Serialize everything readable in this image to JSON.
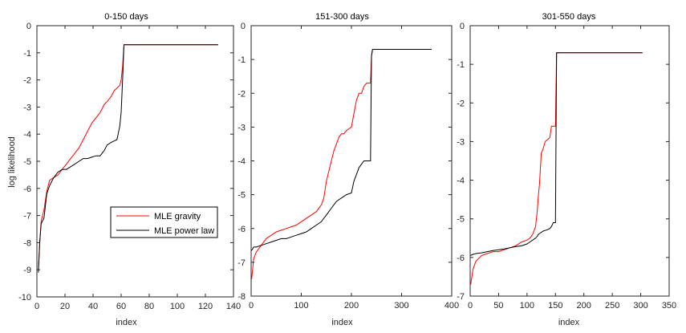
{
  "figure": {
    "ylabel": "log likelihood",
    "legend": {
      "entries": [
        {
          "label": "MLE gravity",
          "color": "#ff0000"
        },
        {
          "label": "MLE power law",
          "color": "#000000"
        }
      ],
      "placement": "lower-right of first panel"
    }
  },
  "chart_data": [
    {
      "type": "line",
      "title": "0-150 days",
      "xlabel": "index",
      "ylabel": "log likelihood",
      "xlim": [
        0,
        140
      ],
      "ylim": [
        -10,
        0
      ],
      "xticks": [
        0,
        20,
        40,
        60,
        80,
        100,
        120,
        140
      ],
      "yticks": [
        -10,
        -9,
        -8,
        -7,
        -6,
        -5,
        -4,
        -3,
        -2,
        -1,
        0
      ],
      "grid": false,
      "series": [
        {
          "name": "MLE gravity",
          "color": "#ff0000",
          "x": [
            1,
            2,
            3,
            5,
            7,
            9,
            12,
            15,
            18,
            21,
            24,
            27,
            30,
            33,
            36,
            39,
            42,
            45,
            48,
            50,
            53,
            55,
            57,
            59,
            60,
            61,
            62,
            63,
            129
          ],
          "y": [
            -9.0,
            -8.0,
            -7.2,
            -6.8,
            -6.1,
            -5.7,
            -5.6,
            -5.5,
            -5.3,
            -5.1,
            -4.9,
            -4.7,
            -4.5,
            -4.2,
            -3.9,
            -3.6,
            -3.4,
            -3.2,
            -2.9,
            -2.8,
            -2.6,
            -2.4,
            -2.3,
            -2.2,
            -2.0,
            -1.5,
            -0.7,
            -0.7,
            -0.7
          ]
        },
        {
          "name": "MLE power law",
          "color": "#000000",
          "x": [
            1,
            2,
            3,
            5,
            7,
            9,
            12,
            15,
            18,
            21,
            24,
            27,
            30,
            33,
            36,
            39,
            42,
            45,
            48,
            50,
            53,
            55,
            57,
            59,
            60,
            61,
            62,
            63,
            129
          ],
          "y": [
            -9.1,
            -8.0,
            -7.3,
            -7.1,
            -6.2,
            -5.9,
            -5.6,
            -5.4,
            -5.3,
            -5.3,
            -5.2,
            -5.1,
            -5.0,
            -4.9,
            -4.9,
            -4.85,
            -4.8,
            -4.8,
            -4.6,
            -4.4,
            -4.3,
            -4.25,
            -4.2,
            -3.7,
            -3.2,
            -2.0,
            -0.7,
            -0.7,
            -0.7
          ]
        }
      ]
    },
    {
      "type": "line",
      "title": "151-300 days",
      "xlabel": "index",
      "ylabel": "",
      "xlim": [
        0,
        400
      ],
      "ylim": [
        -8,
        0
      ],
      "xticks": [
        0,
        100,
        200,
        300,
        400
      ],
      "yticks": [
        -8,
        -7,
        -6,
        -5,
        -4,
        -3,
        -2,
        -1,
        0
      ],
      "grid": false,
      "series": [
        {
          "name": "MLE gravity",
          "color": "#ff0000",
          "x": [
            1,
            3,
            5,
            10,
            20,
            30,
            40,
            50,
            60,
            70,
            80,
            90,
            100,
            110,
            120,
            130,
            140,
            145,
            150,
            155,
            160,
            165,
            170,
            175,
            180,
            185,
            190,
            200,
            205,
            210,
            215,
            220,
            225,
            230,
            235,
            238,
            240,
            242,
            360
          ],
          "y": [
            -7.5,
            -7.2,
            -6.9,
            -6.7,
            -6.5,
            -6.3,
            -6.2,
            -6.1,
            -6.05,
            -6.0,
            -5.95,
            -5.9,
            -5.8,
            -5.7,
            -5.6,
            -5.5,
            -5.3,
            -5.1,
            -4.6,
            -4.3,
            -4.0,
            -3.7,
            -3.5,
            -3.3,
            -3.2,
            -3.2,
            -3.1,
            -3.0,
            -2.6,
            -2.2,
            -2.0,
            -2.0,
            -1.8,
            -1.7,
            -1.7,
            -1.7,
            -0.9,
            -0.7,
            -0.7
          ]
        },
        {
          "name": "MLE power law",
          "color": "#000000",
          "x": [
            1,
            3,
            5,
            10,
            20,
            30,
            40,
            50,
            60,
            70,
            80,
            90,
            100,
            110,
            120,
            130,
            140,
            145,
            150,
            155,
            160,
            165,
            170,
            175,
            180,
            185,
            190,
            200,
            205,
            210,
            215,
            220,
            225,
            230,
            235,
            238,
            240,
            242,
            360
          ],
          "y": [
            -6.65,
            -6.6,
            -6.55,
            -6.55,
            -6.5,
            -6.45,
            -6.4,
            -6.35,
            -6.3,
            -6.3,
            -6.25,
            -6.2,
            -6.15,
            -6.1,
            -6.0,
            -5.9,
            -5.8,
            -5.7,
            -5.6,
            -5.5,
            -5.4,
            -5.3,
            -5.2,
            -5.15,
            -5.1,
            -5.05,
            -5.0,
            -4.95,
            -4.6,
            -4.4,
            -4.2,
            -4.1,
            -4.0,
            -4.0,
            -4.0,
            -4.0,
            -0.9,
            -0.7,
            -0.7
          ]
        }
      ]
    },
    {
      "type": "line",
      "title": "301-550 days",
      "xlabel": "index",
      "ylabel": "",
      "xlim": [
        0,
        350
      ],
      "ylim": [
        -7,
        0
      ],
      "xticks": [
        0,
        50,
        100,
        150,
        200,
        250,
        300,
        350
      ],
      "yticks": [
        -7,
        -6,
        -5,
        -4,
        -3,
        -2,
        -1,
        0
      ],
      "grid": false,
      "series": [
        {
          "name": "MLE gravity",
          "color": "#ff0000",
          "x": [
            1,
            3,
            5,
            10,
            20,
            30,
            40,
            50,
            60,
            70,
            80,
            90,
            100,
            105,
            110,
            115,
            118,
            120,
            122,
            125,
            128,
            132,
            136,
            140,
            143,
            146,
            148,
            150,
            152,
            155,
            303
          ],
          "y": [
            -6.7,
            -6.5,
            -6.3,
            -6.1,
            -5.95,
            -5.9,
            -5.85,
            -5.85,
            -5.8,
            -5.75,
            -5.7,
            -5.6,
            -5.55,
            -5.5,
            -5.4,
            -5.2,
            -4.8,
            -4.4,
            -4.1,
            -3.3,
            -3.2,
            -3.0,
            -2.95,
            -2.9,
            -2.6,
            -2.6,
            -2.6,
            -2.6,
            -0.7,
            -0.7,
            -0.7
          ]
        },
        {
          "name": "MLE power law",
          "color": "#000000",
          "x": [
            1,
            3,
            5,
            10,
            20,
            30,
            40,
            50,
            60,
            70,
            80,
            90,
            100,
            105,
            110,
            115,
            118,
            120,
            122,
            125,
            128,
            132,
            136,
            140,
            143,
            146,
            148,
            150,
            152,
            155,
            303
          ],
          "y": [
            -5.95,
            -5.93,
            -5.92,
            -5.9,
            -5.88,
            -5.85,
            -5.82,
            -5.8,
            -5.78,
            -5.75,
            -5.72,
            -5.7,
            -5.65,
            -5.6,
            -5.55,
            -5.5,
            -5.45,
            -5.4,
            -5.38,
            -5.35,
            -5.32,
            -5.3,
            -5.28,
            -5.25,
            -5.2,
            -5.1,
            -5.1,
            -5.1,
            -0.7,
            -0.7,
            -0.7
          ]
        }
      ]
    }
  ]
}
